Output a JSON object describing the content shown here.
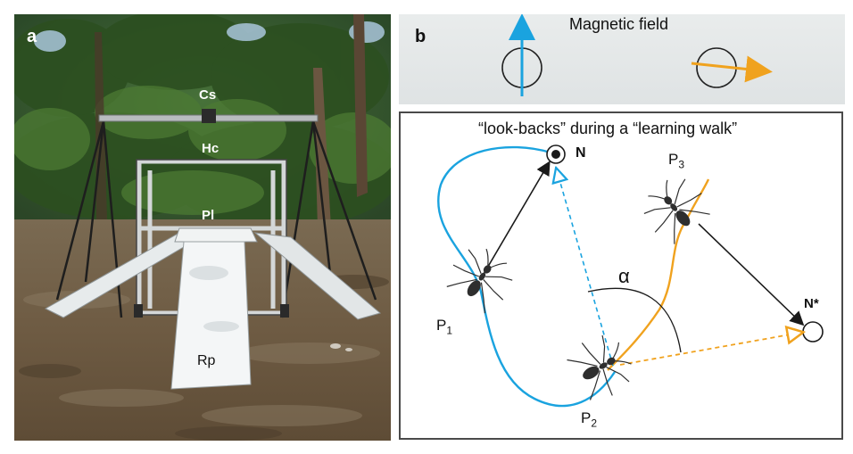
{
  "panel_a": {
    "letter": "a",
    "labels": {
      "cs": "Cs",
      "hc": "Hc",
      "pl": "Pl",
      "rp": "Rp"
    }
  },
  "panel_b": {
    "letter": "b",
    "magnetic_field_title": "Magnetic field",
    "main_title": "“look-backs” during a “learning walk”",
    "nest_label": "N",
    "fictive_nest_label": "N*",
    "positions": {
      "p1": {
        "base": "P",
        "sub": "1"
      },
      "p2": {
        "base": "P",
        "sub": "2"
      },
      "p3": {
        "base": "P",
        "sub": "3"
      }
    },
    "angle_label": "α"
  },
  "colors": {
    "blue": "#1aa3df",
    "orange": "#f0a21e",
    "dark": "#1a1a1a",
    "frame_border": "#4a4a4a"
  }
}
